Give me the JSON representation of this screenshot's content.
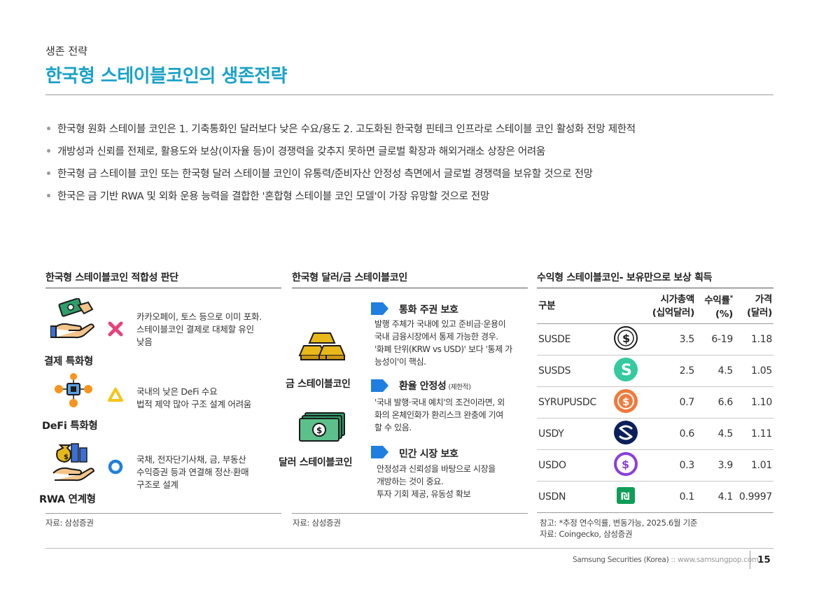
{
  "header": {
    "subtitle": "생존 전략",
    "title": "한국형 스테이블코인의 생존전략"
  },
  "bullets": [
    "한국형 원화 스테이블 코인은 1. 기축통화인 달러보다 낮은 수요/용도 2. 고도화된 한국형 핀테크 인프라로 스테이블 코인 활성화 전망 제한적",
    "개방성과 신뢰를 전제로, 활용도와 보상(이자율 등)이 경쟁력을 갖추지 못하면 글로벌 확장과 해외거래소 상장은 어려움",
    "한국형 금 스테이블 코인 또는 한국형 달러 스테이블 코인이 유통력/준비자산 안정성 측면에서 글로벌 경쟁력을 보유할 것으로 전망",
    "한국은 금 기반 RWA 및 외화 운용 능력을 결합한 '혼합형 스테이블 코인 모델'이 가장 유망할 것으로 전망"
  ],
  "panel1": {
    "title": "한국형 스테이블코인 적합성 판단",
    "rows": [
      {
        "label": "결제 특화형",
        "icon": "hand-money-icon",
        "mark": "x-mark",
        "mark_color": "#e8417a",
        "desc": [
          "카카오페이, 토스 등으로 이미 포화.",
          "스테이블코인 결제로 대체할 유인",
          "낮음"
        ]
      },
      {
        "label": "DeFi 특화형",
        "icon": "defi-network-icon",
        "mark": "triangle-mark",
        "mark_color": "#f5c518",
        "desc": [
          "국내의 낮은 DeFi 수요",
          "법적 제약 많아 구조 설계 어려움"
        ]
      },
      {
        "label": "RWA 연계형",
        "icon": "rwa-assets-icon",
        "mark": "circle-mark",
        "mark_color": "#1e7fe0",
        "desc": [
          "국채, 전자단기사채, 금, 부동산",
          "수익증권 등과 연결해 정산·환매",
          "구조로 설계"
        ]
      }
    ],
    "source": "자료: 삼성증권"
  },
  "panel2": {
    "title": "한국형 달러/금 스테이블코인",
    "labels": {
      "gold": "금 스테이블코인",
      "dollar": "달러 스테이블코인"
    },
    "points": [
      {
        "head": "통화 주권 보호",
        "note": "",
        "body": [
          "발행 주체가 국내에 있고 준비금·운용이",
          "국내 금융시장에서 통제 가능한 경우.",
          "'화폐 단위(KRW vs USD)' 보다 '통제 가",
          "능성이'이 핵심."
        ]
      },
      {
        "head": "환율 안정성",
        "note": "(제한적)",
        "body": [
          "'국내 발행·국내 예치'의 조건이라면, 외",
          "화의 온체인화가 환리스크 완충에 기여",
          "할 수 있음."
        ]
      },
      {
        "head": "민간 시장 보호",
        "note": "",
        "body": [
          "안정성과 신뢰성을 바탕으로 시장을",
          "개방하는 것이 중요.",
          "투자 기회 제공, 유동성 확보"
        ]
      }
    ],
    "accent_color": "#1e7fe0",
    "source": "자료: 삼성증권"
  },
  "panel3": {
    "title": "수익형 스테이블코인- 보유만으로 보상 획득",
    "columns": {
      "category": "구분",
      "mcap_l1": "시가총액",
      "mcap_l2": "(십억달러)",
      "yield_l1": "수익률",
      "yield_sup": "*",
      "yield_l2": "(%)",
      "price_l1": "가격",
      "price_l2": "(달러)"
    },
    "rows": [
      {
        "name": "SUSDE",
        "logo": "susde-logo-icon",
        "color": "#1b1b1b",
        "mcap": "3.5",
        "yield": "6-19",
        "price": "1.18"
      },
      {
        "name": "SUSDS",
        "logo": "susds-logo-icon",
        "color": "#35c9a0",
        "mcap": "2.5",
        "yield": "4.5",
        "price": "1.05"
      },
      {
        "name": "SYRUPUSDC",
        "logo": "syrupusdc-logo-icon",
        "color": "#f07a3c",
        "mcap": "0.7",
        "yield": "6.6",
        "price": "1.10"
      },
      {
        "name": "USDY",
        "logo": "usdy-logo-icon",
        "color": "#0b1f5c",
        "mcap": "0.6",
        "yield": "4.5",
        "price": "1.11"
      },
      {
        "name": "USDO",
        "logo": "usdo-logo-icon",
        "color": "#8b3fd9",
        "mcap": "0.3",
        "yield": "3.9",
        "price": "1.01"
      },
      {
        "name": "USDN",
        "logo": "usdn-logo-icon",
        "color": "#0f9d58",
        "mcap": "0.1",
        "yield": "4.1",
        "price": "0.9997"
      }
    ],
    "note": "참고: *추정 연수익률, 변동가능, 2025.6월 기준",
    "source": "자료: Coingecko, 삼성증권"
  },
  "footer": {
    "company": "Samsung Securities (Korea)",
    "separator": "::",
    "site": "www.samsungpop.com",
    "page": "15"
  },
  "colors": {
    "title": "#1aa3c8",
    "accent_blue": "#1e7fe0",
    "gold": "#e8b81a"
  }
}
